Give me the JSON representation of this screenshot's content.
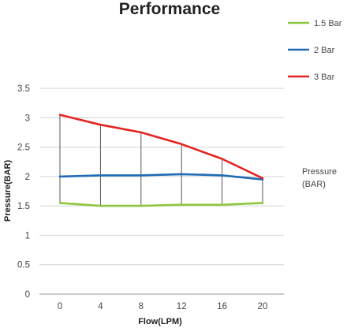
{
  "chart_data": {
    "type": "line",
    "title": "Performance",
    "xlabel": "Flow(LPM)",
    "ylabel": "Pressure(BAR)",
    "categories": [
      "0",
      "4",
      "8",
      "12",
      "16",
      "20"
    ],
    "y_ticks": [
      "0",
      "0.5",
      "1",
      "1.5",
      "2",
      "2.5",
      "3",
      "3.5"
    ],
    "ylim": [
      0,
      3.5
    ],
    "grid": "horizontal",
    "legend_position": "top-right",
    "side_label": [
      "Pressure",
      "(BAR)"
    ],
    "series": [
      {
        "name": "1.5 Bar",
        "color": "#8dc63f",
        "values": [
          1.55,
          1.5,
          1.5,
          1.52,
          1.52,
          1.55
        ]
      },
      {
        "name": "2 Bar",
        "color": "#1f6bb5",
        "values": [
          2.0,
          2.02,
          2.02,
          2.04,
          2.02,
          1.95
        ]
      },
      {
        "name": "3 Bar",
        "color": "#e52421",
        "values": [
          3.05,
          2.88,
          2.75,
          2.55,
          2.3,
          1.97
        ]
      }
    ]
  }
}
